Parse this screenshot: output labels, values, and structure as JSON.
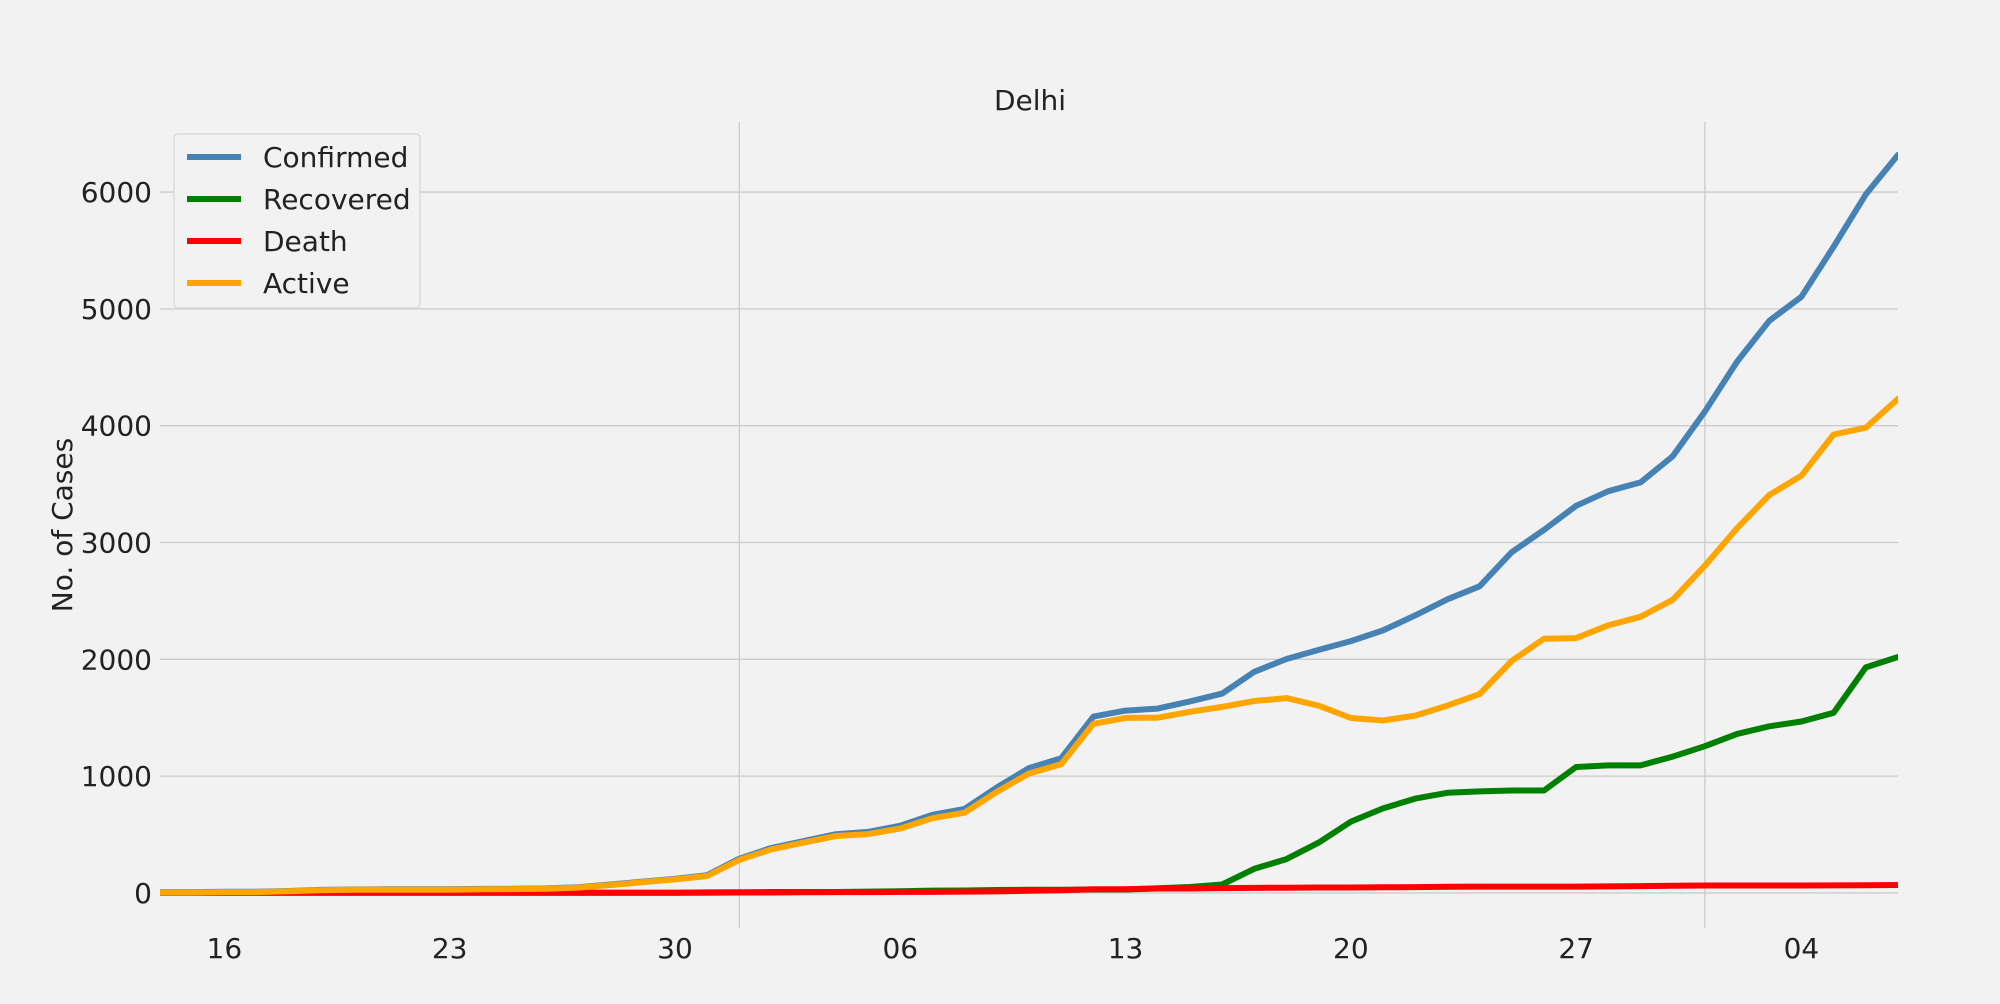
{
  "chart_data": {
    "type": "line",
    "title": "Delhi",
    "xlabel": "",
    "ylabel": "No. of Cases",
    "x_start": "2020-03-14",
    "x_end": "2020-05-07",
    "x_tick_labels": [
      "16",
      "23",
      "30",
      "06",
      "13",
      "20",
      "27",
      "04"
    ],
    "x_tick_dates": [
      "2020-03-16",
      "2020-03-23",
      "2020-03-30",
      "2020-04-06",
      "2020-04-13",
      "2020-04-20",
      "2020-04-27",
      "2020-05-04"
    ],
    "x_major_grid_dates": [
      "2020-04-01",
      "2020-05-01"
    ],
    "y_ticks": [
      0,
      1000,
      2000,
      3000,
      4000,
      5000,
      6000
    ],
    "y_tick_labels": [
      "0",
      "1000",
      "2000",
      "3000",
      "4000",
      "5000",
      "6000"
    ],
    "ylim": [
      -300,
      6600
    ],
    "grid": true,
    "legend_position": "top-left",
    "series": [
      {
        "name": "Confirmed",
        "color": "#4682b4",
        "values": [
          7,
          7,
          10,
          10,
          17,
          26,
          30,
          31,
          31,
          31,
          35,
          36,
          39,
          49,
          72,
          97,
          120,
          152,
          293,
          386,
          445,
          503,
          523,
          576,
          669,
          720,
          903,
          1069,
          1154,
          1510,
          1561,
          1578,
          1640,
          1707,
          1893,
          2003,
          2081,
          2156,
          2248,
          2376,
          2514,
          2625,
          2918,
          3108,
          3314,
          3439,
          3515,
          3738,
          4122,
          4549,
          4898,
          5104,
          5532,
          5980,
          6318
        ]
      },
      {
        "name": "Recovered",
        "color": "#008000",
        "values": [
          2,
          2,
          2,
          2,
          2,
          2,
          2,
          2,
          2,
          2,
          2,
          2,
          2,
          2,
          2,
          2,
          2,
          5,
          6,
          8,
          8,
          8,
          12,
          15,
          20,
          21,
          25,
          27,
          28,
          30,
          30,
          40,
          51,
          72,
          207,
          290,
          431,
          611,
          724,
          808,
          857,
          869,
          877,
          877,
          1078,
          1092,
          1092,
          1167,
          1256,
          1362,
          1427,
          1468,
          1542,
          1931,
          2020
        ]
      },
      {
        "name": "Death",
        "color": "#ff0000",
        "values": [
          1,
          1,
          1,
          1,
          1,
          1,
          1,
          1,
          1,
          1,
          1,
          1,
          1,
          1,
          2,
          2,
          2,
          2,
          4,
          4,
          6,
          7,
          7,
          9,
          9,
          12,
          13,
          19,
          24,
          32,
          32,
          38,
          38,
          42,
          43,
          45,
          47,
          47,
          48,
          50,
          53,
          54,
          54,
          54,
          54,
          56,
          59,
          61,
          64,
          64,
          64,
          64,
          65,
          66,
          68
        ]
      },
      {
        "name": "Active",
        "color": "#ffa500",
        "values": [
          4,
          4,
          7,
          7,
          14,
          23,
          27,
          28,
          28,
          28,
          32,
          33,
          36,
          46,
          68,
          93,
          116,
          145,
          283,
          374,
          431,
          488,
          504,
          552,
          640,
          687,
          865,
          1023,
          1102,
          1448,
          1499,
          1500,
          1551,
          1593,
          1643,
          1668,
          1603,
          1498,
          1476,
          1518,
          1604,
          1702,
          1987,
          2177,
          2182,
          2291,
          2364,
          2510,
          2802,
          3123,
          3407,
          3572,
          3925,
          3983,
          4230
        ]
      }
    ]
  }
}
